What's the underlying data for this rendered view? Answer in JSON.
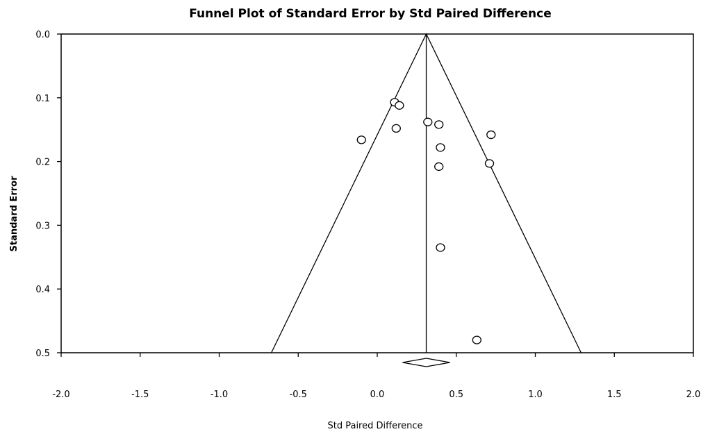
{
  "chart_data": {
    "type": "scatter",
    "title": "Funnel Plot of Standard Error by Std Paired Difference",
    "xlabel": "Std Paired Difference",
    "ylabel": "Standard Error",
    "xlim": [
      -2.0,
      2.0
    ],
    "ylim": [
      0.0,
      0.5
    ],
    "y_inverted": true,
    "x_ticks": [
      "-2.0",
      "-1.5",
      "-1.0",
      "-0.5",
      "0.0",
      "0.5",
      "1.0",
      "1.5",
      "2.0"
    ],
    "x_tick_values": [
      -2.0,
      -1.5,
      -1.0,
      -0.5,
      0.0,
      0.5,
      1.0,
      1.5,
      2.0
    ],
    "y_ticks": [
      "0.0",
      "0.1",
      "0.2",
      "0.3",
      "0.4",
      "0.5"
    ],
    "y_tick_values": [
      0.0,
      0.1,
      0.2,
      0.3,
      0.4,
      0.5
    ],
    "grid": false,
    "pooled_estimate": 0.31,
    "funnel_bottom_se": 0.5,
    "funnel_bottom_left": -0.67,
    "funnel_bottom_right": 1.29,
    "summary_diamond": {
      "center": 0.31,
      "lower": 0.16,
      "upper": 0.46
    },
    "points": [
      {
        "x": 0.11,
        "y": 0.107
      },
      {
        "x": 0.14,
        "y": 0.112
      },
      {
        "x": 0.32,
        "y": 0.138
      },
      {
        "x": 0.39,
        "y": 0.142
      },
      {
        "x": 0.12,
        "y": 0.148
      },
      {
        "x": 0.72,
        "y": 0.158
      },
      {
        "x": -0.1,
        "y": 0.166
      },
      {
        "x": 0.4,
        "y": 0.178
      },
      {
        "x": 0.71,
        "y": 0.203
      },
      {
        "x": 0.39,
        "y": 0.208
      },
      {
        "x": 0.4,
        "y": 0.335
      },
      {
        "x": 0.63,
        "y": 0.48
      }
    ]
  }
}
